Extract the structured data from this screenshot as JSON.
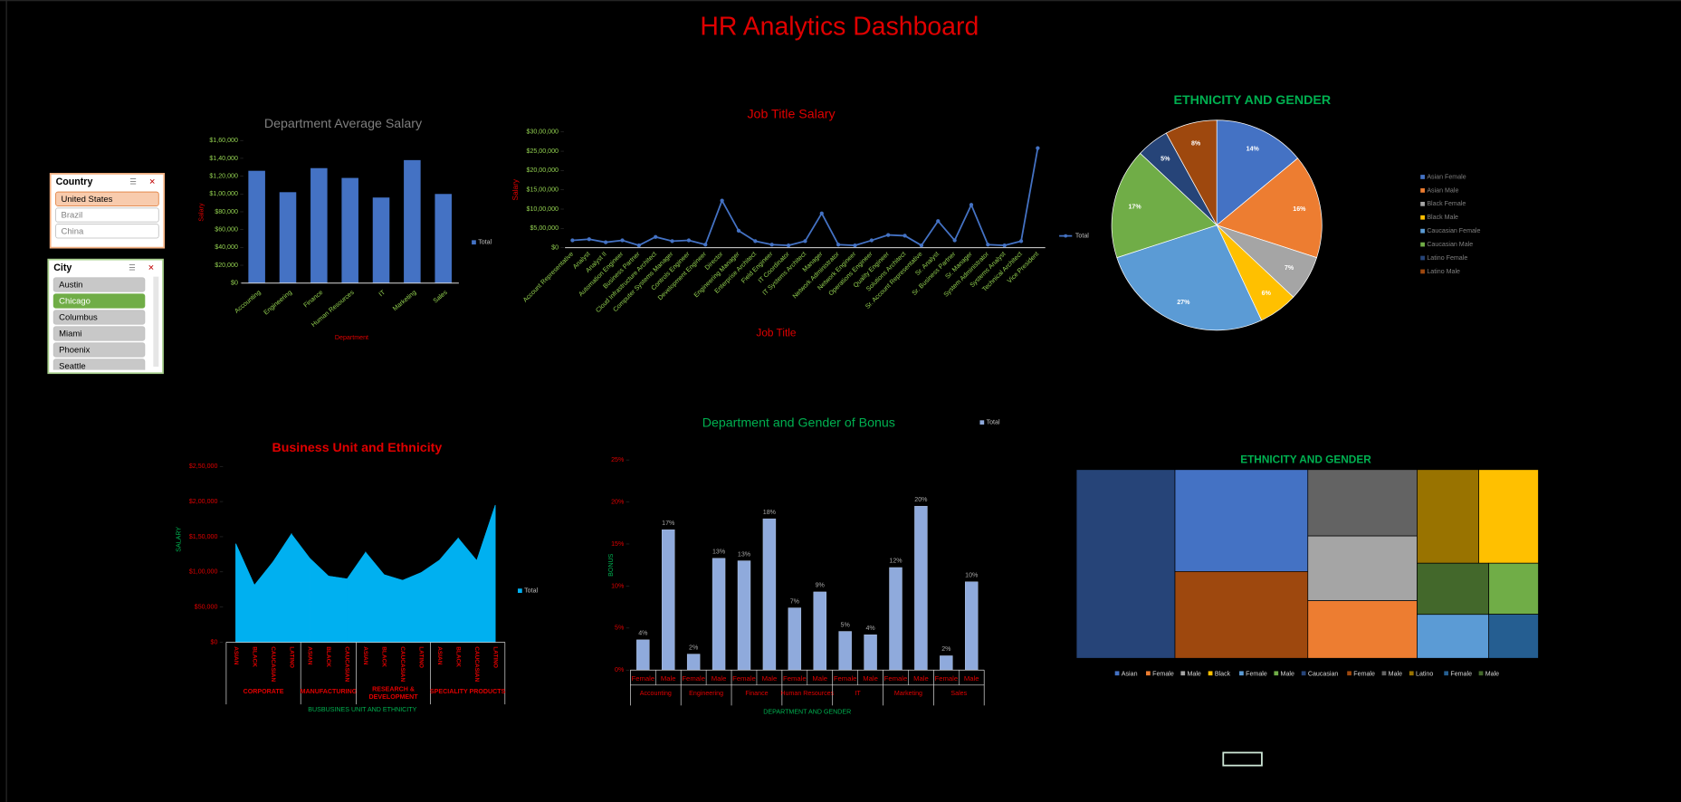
{
  "title": "HR Analytics Dashboard",
  "slicers": [
    {
      "title": "Country",
      "items": [
        "United States",
        "Brazil",
        "China"
      ],
      "selected": 0
    },
    {
      "title": "City",
      "items": [
        "Austin",
        "Chicago",
        "Columbus",
        "Miami",
        "Phoenix",
        "Seattle"
      ],
      "selected": 1
    }
  ],
  "chart_data": [
    {
      "type": "bar",
      "title": "Department Average Salary",
      "x_label": "Department",
      "y_label": "Salary",
      "legend": "Total",
      "color": "#4472c4",
      "categories": [
        "Accounting",
        "Engineering",
        "Finance",
        "Human Resources",
        "IT",
        "Marketing",
        "Sales"
      ],
      "values": [
        126000,
        102000,
        129000,
        118000,
        96000,
        138000,
        100000
      ],
      "ylim": [
        0,
        160000
      ],
      "yticks": [
        {
          "value": 0,
          "label": "$0"
        },
        {
          "value": 20000,
          "label": "$20,000"
        },
        {
          "value": 40000,
          "label": "$40,000"
        },
        {
          "value": 60000,
          "label": "$60,000"
        },
        {
          "value": 80000,
          "label": "$80,000"
        },
        {
          "value": 100000,
          "label": "$1,00,000"
        },
        {
          "value": 120000,
          "label": "$1,20,000"
        },
        {
          "value": 140000,
          "label": "$1,40,000"
        },
        {
          "value": 160000,
          "label": "$1,60,000"
        }
      ]
    },
    {
      "type": "line",
      "title": "Job Title Salary",
      "x_label": "Job Title",
      "y_label": "Salary",
      "legend": "Total",
      "color": "#4472c4",
      "categories": [
        "Account Representative",
        "Analyst",
        "Analyst II",
        "Automation Engineer",
        "Business Partner",
        "Cloud Infrastructure Architect",
        "Computer Systems Manager",
        "Controls Engineer",
        "Development Engineer",
        "Director",
        "Engineering Manager",
        "Enterprise Architect",
        "Field Engineer",
        "IT Coordinator",
        "IT Systems Architect",
        "Manager",
        "Network Administrator",
        "Network Engineer",
        "Operations Engineer",
        "Quality Engineer",
        "Solutions Architect",
        "Sr. Account Representative",
        "Sr. Analyst",
        "Sr. Business Partner",
        "Sr. Manager",
        "System Administrator",
        "Systems Analyst",
        "Technical Architect",
        "Vice President"
      ],
      "values": [
        190000,
        220000,
        140000,
        190000,
        60000,
        280000,
        170000,
        190000,
        80000,
        1220000,
        440000,
        170000,
        80000,
        60000,
        170000,
        890000,
        80000,
        60000,
        190000,
        330000,
        310000,
        60000,
        690000,
        190000,
        1110000,
        80000,
        60000,
        170000,
        2580000
      ],
      "ylim": [
        0,
        3000000
      ],
      "yticks": [
        {
          "value": 0,
          "label": "$0"
        },
        {
          "value": 500000,
          "label": "$5,00,000"
        },
        {
          "value": 1000000,
          "label": "$10,00,000"
        },
        {
          "value": 1500000,
          "label": "$15,00,000"
        },
        {
          "value": 2000000,
          "label": "$20,00,000"
        },
        {
          "value": 2500000,
          "label": "$25,00,000"
        },
        {
          "value": 3000000,
          "label": "$30,00,000"
        }
      ]
    },
    {
      "type": "pie",
      "title": "ETHNICITY AND GENDER",
      "categories": [
        "Asian Female",
        "Asian Male",
        "Black Female",
        "Black Male",
        "Caucasian Female",
        "Caucasian Male",
        "Latino Female",
        "Latino Male"
      ],
      "values": [
        14,
        16,
        7,
        6,
        27,
        17,
        5,
        8
      ],
      "value_labels": [
        "14%",
        "16%",
        "7%",
        "6%",
        "27%",
        "17%",
        "5%",
        "8%"
      ],
      "colors": [
        "#4472c4",
        "#ed7d31",
        "#a5a5a5",
        "#ffc000",
        "#5b9bd5",
        "#70ad47",
        "#264478",
        "#9e480e"
      ]
    },
    {
      "type": "area",
      "title": "Business Unit and Ethnicity",
      "x_label": "BUSBUSINES UNIT AND ETHNICITY",
      "y_label": "SALARY",
      "legend": "Total",
      "color": "#00b0f0",
      "groups": [
        {
          "name": "CORPORATE",
          "categories": [
            "ASIAN",
            "BLACK",
            "CAUCASIAN",
            "LATINO"
          ],
          "values": [
            140000,
            81000,
            114000,
            154000
          ]
        },
        {
          "name": "MANUFACTURING",
          "categories": [
            "ASIAN",
            "BLACK",
            "CAUCASIAN"
          ],
          "values": [
            119000,
            94000,
            90000
          ]
        },
        {
          "name": "RESEARCH & DEVELOPMENT",
          "categories": [
            "ASIAN",
            "BLACK",
            "CAUCASIAN",
            "LATINO"
          ],
          "values": [
            128000,
            96000,
            88000,
            99000
          ]
        },
        {
          "name": "SPECIALITY PRODUCTS",
          "categories": [
            "ASIAN",
            "BLACK",
            "CAUCASIAN",
            "LATINO"
          ],
          "values": [
            117000,
            148000,
            116000,
            195000
          ]
        }
      ],
      "ylim": [
        0,
        250000
      ],
      "yticks": [
        {
          "value": 0,
          "label": "$0"
        },
        {
          "value": 50000,
          "label": "$50,000"
        },
        {
          "value": 100000,
          "label": "$1,00,000"
        },
        {
          "value": 150000,
          "label": "$1,50,000"
        },
        {
          "value": 200000,
          "label": "$2,00,000"
        },
        {
          "value": 250000,
          "label": "$2,50,000"
        }
      ]
    },
    {
      "type": "bar",
      "title": "Department and Gender of Bonus",
      "x_label": "DEPARTMENT AND GENDER",
      "y_label": "BONUS",
      "legend": "Total",
      "color": "#8faadc",
      "groups": [
        {
          "name": "Accounting",
          "categories": [
            "Female",
            "Male"
          ],
          "values": [
            3.6,
            16.7
          ],
          "value_labels": [
            "4%",
            "17%"
          ]
        },
        {
          "name": "Engineering",
          "categories": [
            "Female",
            "Male"
          ],
          "values": [
            1.9,
            13.3
          ],
          "value_labels": [
            "2%",
            "13%"
          ]
        },
        {
          "name": "Finance",
          "categories": [
            "Female",
            "Male"
          ],
          "values": [
            13.0,
            18.0
          ],
          "value_labels": [
            "13%",
            "18%"
          ]
        },
        {
          "name": "Human Resources",
          "categories": [
            "Female",
            "Male"
          ],
          "values": [
            7.4,
            9.3
          ],
          "value_labels": [
            "7%",
            "9%"
          ]
        },
        {
          "name": "IT",
          "categories": [
            "Female",
            "Male"
          ],
          "values": [
            4.6,
            4.2
          ],
          "value_labels": [
            "5%",
            "4%"
          ]
        },
        {
          "name": "Marketing",
          "categories": [
            "Female",
            "Male"
          ],
          "values": [
            12.2,
            19.5
          ],
          "value_labels": [
            "12%",
            "20%"
          ]
        },
        {
          "name": "Sales",
          "categories": [
            "Female",
            "Male"
          ],
          "values": [
            1.7,
            10.5
          ],
          "value_labels": [
            "2%",
            "10%"
          ]
        }
      ],
      "ylim": [
        0,
        25
      ],
      "yticks": [
        {
          "value": 0,
          "label": "0%"
        },
        {
          "value": 5,
          "label": "5%"
        },
        {
          "value": 10,
          "label": "10%"
        },
        {
          "value": 15,
          "label": "15%"
        },
        {
          "value": 20,
          "label": "20%"
        },
        {
          "value": 25,
          "label": "25%"
        }
      ]
    },
    {
      "type": "treemap",
      "title": "ETHNICITY AND GENDER",
      "categories": [
        "Asian",
        "Female",
        "Male",
        "Black",
        "Female",
        "Male",
        "Caucasian",
        "Female",
        "Male",
        "Latino",
        "Female",
        "Male"
      ],
      "values": [
        15.5,
        7.2,
        8.1,
        6.4,
        3.6,
        2.9,
        21.3,
        13.2,
        8.3,
        6.6,
        2.5,
        4.2
      ],
      "colors": [
        "#4472c4",
        "#ed7d31",
        "#a5a5a5",
        "#ffc000",
        "#5b9bd5",
        "#70ad47",
        "#264478",
        "#9e480e",
        "#636363",
        "#997300",
        "#255e91",
        "#43682b"
      ]
    }
  ]
}
